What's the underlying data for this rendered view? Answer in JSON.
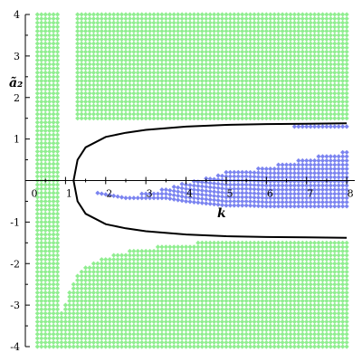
{
  "chart_data": {
    "type": "scatter",
    "title": "",
    "xlabel": "k",
    "ylabel": "ã₂",
    "xlim": [
      0,
      8.2
    ],
    "ylim": [
      -4,
      4
    ],
    "x_ticks": [
      {
        "value": 0,
        "label": "0"
      },
      {
        "value": 1,
        "label": "1"
      },
      {
        "value": 2,
        "label": "2"
      },
      {
        "value": 3,
        "label": "3"
      },
      {
        "value": 4,
        "label": "4"
      },
      {
        "value": 5,
        "label": "5"
      },
      {
        "value": 6,
        "label": "6"
      },
      {
        "value": 7,
        "label": "7"
      },
      {
        "value": 8,
        "label": "8"
      }
    ],
    "y_ticks": [
      {
        "value": 4,
        "label": "4"
      },
      {
        "value": 3,
        "label": "3"
      },
      {
        "value": 2,
        "label": "2"
      },
      {
        "value": 1,
        "label": "1"
      },
      {
        "value": -1,
        "label": "-1"
      },
      {
        "value": -2,
        "label": "-2"
      },
      {
        "value": -3,
        "label": "-3"
      },
      {
        "value": -4,
        "label": "-4"
      }
    ],
    "grid": false,
    "colors": {
      "green_region": "#90ee90",
      "blue_region": "#7b84f0",
      "boundary_curve": "#000000",
      "axes": "#000000"
    },
    "series": [
      {
        "marker": "diamond",
        "color": "#90ee90",
        "regions": [
          {
            "x_range": [
              0.3,
              0.8
            ],
            "y_range": [
              -4,
              4
            ]
          },
          {
            "x_range": [
              1.3,
              8.0
            ],
            "y_range": [
              1.4,
              4
            ],
            "upper_boundary_note": "above black curve"
          },
          {
            "x_range": [
              1.0,
              8.0
            ],
            "y_range": [
              -4,
              -1.5
            ],
            "lower_edge_samples": [
              {
                "x": 0.9,
                "y_top": -3.2
              },
              {
                "x": 1.1,
                "y_top": -2.7
              },
              {
                "x": 1.3,
                "y_top": -2.3
              },
              {
                "x": 1.5,
                "y_top": -2.1
              },
              {
                "x": 2.0,
                "y_top": -1.85
              },
              {
                "x": 2.5,
                "y_top": -1.72
              },
              {
                "x": 3.0,
                "y_top": -1.62
              },
              {
                "x": 3.5,
                "y_top": -1.58
              },
              {
                "x": 4.0,
                "y_top": -1.55
              },
              {
                "x": 4.3,
                "y_top": -1.48
              },
              {
                "x": 8.0,
                "y_top": -1.48
              }
            ]
          }
        ]
      },
      {
        "marker": "diamond",
        "color": "#7b84f0",
        "samples": [
          {
            "x": 1.8,
            "y_min": -0.3,
            "y_max": -0.25
          },
          {
            "x": 2.5,
            "y_min": -0.42,
            "y_max": -0.38
          },
          {
            "x": 3.0,
            "y_min": -0.42,
            "y_max": -0.3
          },
          {
            "x": 3.5,
            "y_min": -0.42,
            "y_max": -0.2
          },
          {
            "x": 4.0,
            "y_min": -0.5,
            "y_max": -0.05
          },
          {
            "x": 4.5,
            "y_min": -0.55,
            "y_max": 0.05
          },
          {
            "x": 5.0,
            "y_min": -0.6,
            "y_max": 0.2
          },
          {
            "x": 5.5,
            "y_min": -0.6,
            "y_max": 0.25
          },
          {
            "x": 6.0,
            "y_min": -0.62,
            "y_max": 0.35
          },
          {
            "x": 6.5,
            "y_min": -0.62,
            "y_max": 0.42
          },
          {
            "x": 7.0,
            "y_min": -0.62,
            "y_max": 0.55
          },
          {
            "x": 7.5,
            "y_min": -0.62,
            "y_max": 0.62
          },
          {
            "x": 8.0,
            "y_min": -0.62,
            "y_max": 0.7
          }
        ],
        "upper_band": {
          "x_range": [
            6.7,
            8.0
          ],
          "y": 1.3
        }
      }
    ],
    "boundary_curves": [
      {
        "name_hidden": true,
        "points": [
          {
            "x": 1.2,
            "y": 0.0
          },
          {
            "x": 1.3,
            "y": 0.5
          },
          {
            "x": 1.5,
            "y": 0.8
          },
          {
            "x": 2.0,
            "y": 1.05
          },
          {
            "x": 2.5,
            "y": 1.15
          },
          {
            "x": 3.0,
            "y": 1.22
          },
          {
            "x": 4.0,
            "y": 1.3
          },
          {
            "x": 5.0,
            "y": 1.34
          },
          {
            "x": 6.0,
            "y": 1.36
          },
          {
            "x": 7.0,
            "y": 1.37
          },
          {
            "x": 8.0,
            "y": 1.38
          }
        ]
      },
      {
        "name_hidden": true,
        "points": [
          {
            "x": 1.2,
            "y": 0.0
          },
          {
            "x": 1.3,
            "y": -0.5
          },
          {
            "x": 1.5,
            "y": -0.8
          },
          {
            "x": 2.0,
            "y": -1.05
          },
          {
            "x": 2.5,
            "y": -1.15
          },
          {
            "x": 3.0,
            "y": -1.22
          },
          {
            "x": 4.0,
            "y": -1.3
          },
          {
            "x": 5.0,
            "y": -1.34
          },
          {
            "x": 6.0,
            "y": -1.36
          },
          {
            "x": 7.0,
            "y": -1.37
          },
          {
            "x": 8.0,
            "y": -1.38
          }
        ]
      }
    ]
  }
}
